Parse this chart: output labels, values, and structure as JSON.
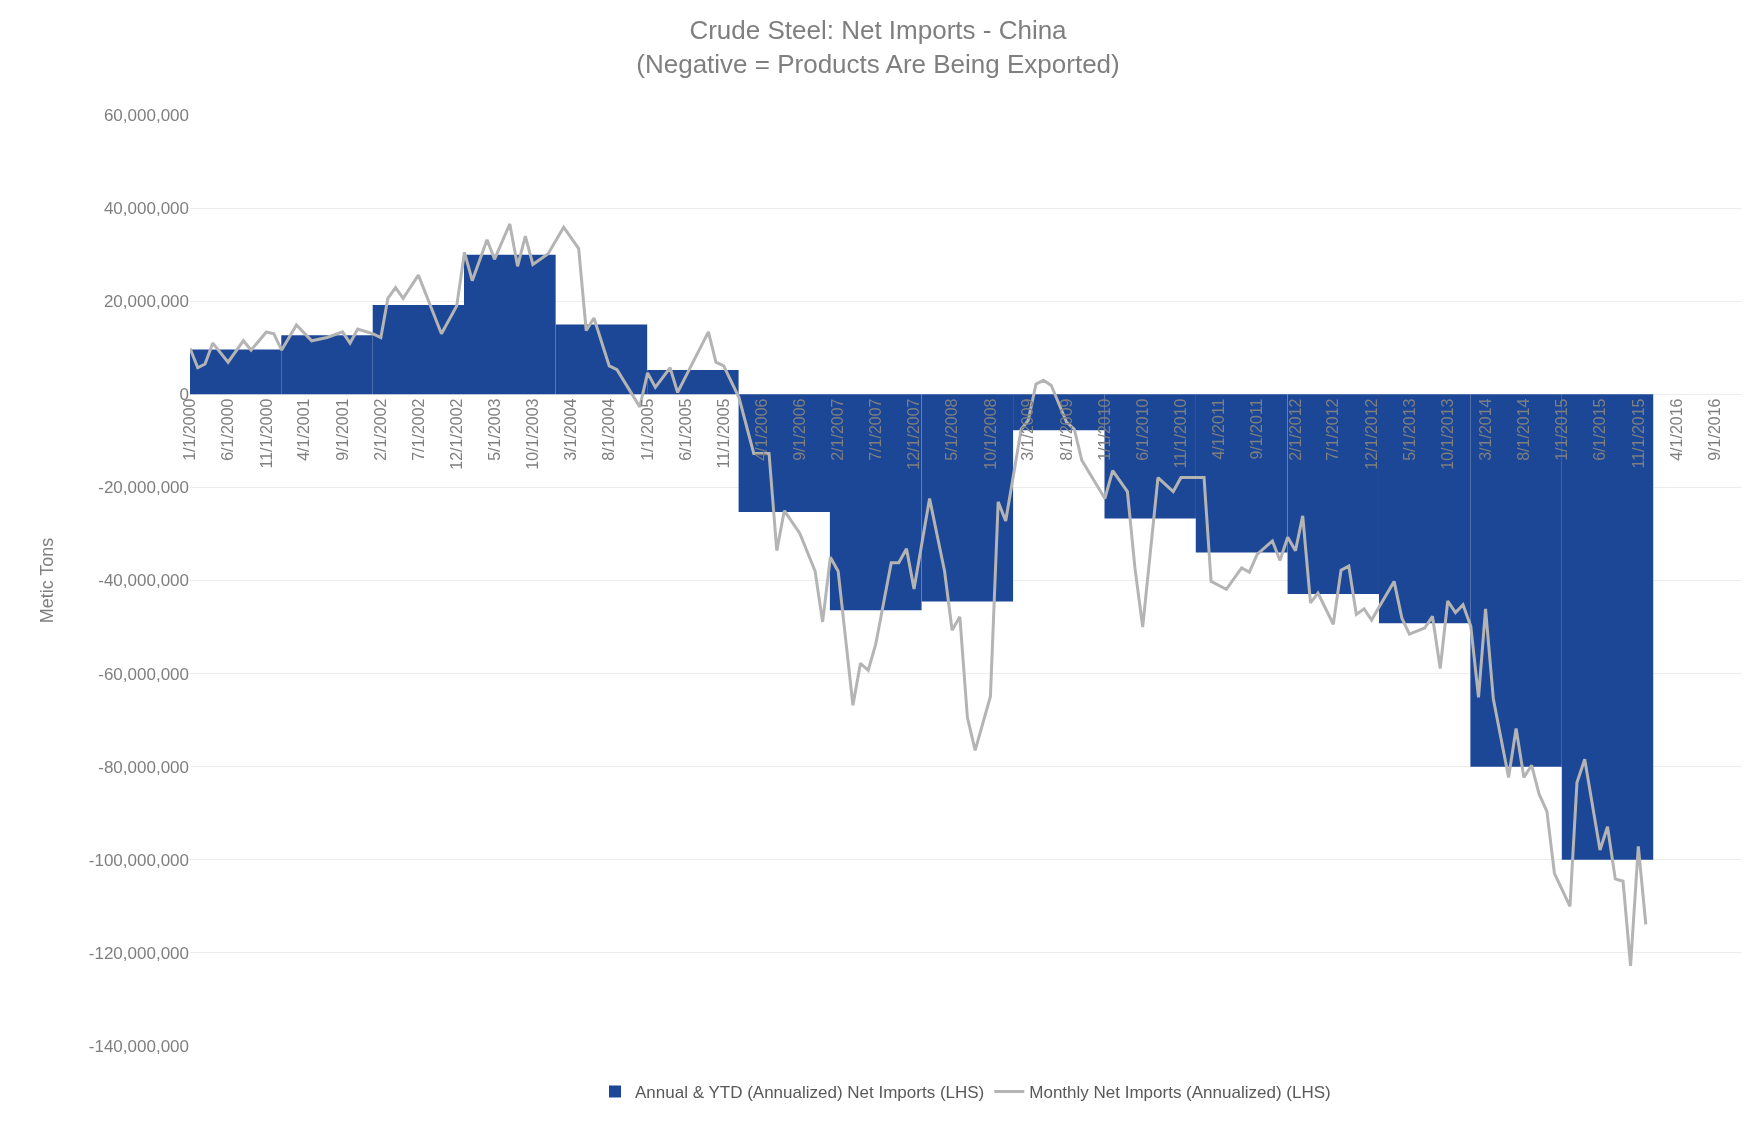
{
  "chart_data": {
    "type": "line",
    "title": "Crude Steel: Net Imports - China",
    "subtitle": "(Negative = Products Are Being Exported)",
    "ylabel": "Metic Tons",
    "xlim": [
      "2000-01-01",
      "2016-12-15"
    ],
    "xticks": [
      {
        "value": "2000-01-01",
        "label": "1/1/2000"
      },
      {
        "value": "2000-06-01",
        "label": "6/1/2000"
      },
      {
        "value": "2000-11-01",
        "label": "11/1/2000"
      },
      {
        "value": "2001-04-01",
        "label": "4/1/2001"
      },
      {
        "value": "2001-09-01",
        "label": "9/1/2001"
      },
      {
        "value": "2002-02-01",
        "label": "2/1/2002"
      },
      {
        "value": "2002-07-01",
        "label": "7/1/2002"
      },
      {
        "value": "2002-12-01",
        "label": "12/1/2002"
      },
      {
        "value": "2003-05-01",
        "label": "5/1/2003"
      },
      {
        "value": "2003-10-01",
        "label": "10/1/2003"
      },
      {
        "value": "2004-03-01",
        "label": "3/1/2004"
      },
      {
        "value": "2004-08-01",
        "label": "8/1/2004"
      },
      {
        "value": "2005-01-01",
        "label": "1/1/2005"
      },
      {
        "value": "2005-06-01",
        "label": "6/1/2005"
      },
      {
        "value": "2005-11-01",
        "label": "11/1/2005"
      },
      {
        "value": "2006-04-01",
        "label": "4/1/2006"
      },
      {
        "value": "2006-09-01",
        "label": "9/1/2006"
      },
      {
        "value": "2007-02-01",
        "label": "2/1/2007"
      },
      {
        "value": "2007-07-01",
        "label": "7/1/2007"
      },
      {
        "value": "2007-12-01",
        "label": "12/1/2007"
      },
      {
        "value": "2008-05-01",
        "label": "5/1/2008"
      },
      {
        "value": "2008-10-01",
        "label": "10/1/2008"
      },
      {
        "value": "2009-03-01",
        "label": "3/1/2009"
      },
      {
        "value": "2009-08-01",
        "label": "8/1/2009"
      },
      {
        "value": "2010-01-01",
        "label": "1/1/2010"
      },
      {
        "value": "2010-06-01",
        "label": "6/1/2010"
      },
      {
        "value": "2010-11-01",
        "label": "11/1/2010"
      },
      {
        "value": "2011-04-01",
        "label": "4/1/2011"
      },
      {
        "value": "2011-09-01",
        "label": "9/1/2011"
      },
      {
        "value": "2012-02-01",
        "label": "2/1/2012"
      },
      {
        "value": "2012-07-01",
        "label": "7/1/2012"
      },
      {
        "value": "2012-12-01",
        "label": "12/1/2012"
      },
      {
        "value": "2013-05-01",
        "label": "5/1/2013"
      },
      {
        "value": "2013-10-01",
        "label": "10/1/2013"
      },
      {
        "value": "2014-03-01",
        "label": "3/1/2014"
      },
      {
        "value": "2014-08-01",
        "label": "8/1/2014"
      },
      {
        "value": "2015-01-01",
        "label": "1/1/2015"
      },
      {
        "value": "2015-06-01",
        "label": "6/1/2015"
      },
      {
        "value": "2015-11-01",
        "label": "11/1/2015"
      },
      {
        "value": "2016-04-01",
        "label": "4/1/2016"
      },
      {
        "value": "2016-09-01",
        "label": "9/1/2016"
      }
    ],
    "ylim": [
      -140000000,
      60000000
    ],
    "yticks": [
      {
        "value": -140000000,
        "label": "-140,000,000"
      },
      {
        "value": -120000000,
        "label": "-120,000,000"
      },
      {
        "value": -100000000,
        "label": "-100,000,000"
      },
      {
        "value": -80000000,
        "label": "-80,000,000"
      },
      {
        "value": -60000000,
        "label": "-60,000,000"
      },
      {
        "value": -40000000,
        "label": "-40,000,000"
      },
      {
        "value": -20000000,
        "label": "-20,000,000"
      },
      {
        "value": 0,
        "label": "0"
      },
      {
        "value": 20000000,
        "label": "20,000,000"
      },
      {
        "value": 40000000,
        "label": "40,000,000"
      },
      {
        "value": 60000000,
        "label": "60,000,000"
      }
    ],
    "grid": "y",
    "legend": "bottom",
    "marker": "none",
    "line_style": "solid",
    "series": [
      {
        "name": "Annual & YTD (Annualized) Net Imports (LHS)",
        "type": "bar",
        "color": "#1c4796",
        "x": [
          "2000-07-01",
          "2001-07-01",
          "2002-07-01",
          "2003-07-01",
          "2004-07-01",
          "2005-07-01",
          "2006-07-01",
          "2007-07-01",
          "2008-07-01",
          "2009-07-01",
          "2010-07-01",
          "2011-07-01",
          "2012-07-01",
          "2013-07-01",
          "2014-07-01",
          "2015-07-01"
        ],
        "values": [
          9600000,
          12700000,
          19200000,
          30000000,
          15000000,
          5200000,
          -25300000,
          -46400000,
          -44500000,
          -7700000,
          -26700000,
          -34000000,
          -42900000,
          -49200000,
          -80000000,
          -100000000
        ]
      },
      {
        "name": "Monthly Net Imports (Annualized) (LHS)",
        "color": "#b4b4b4",
        "x": [
          "2000-01",
          "2000-02",
          "2000-03",
          "2000-04",
          "2000-06",
          "2000-08",
          "2000-09",
          "2000-11",
          "2000-12",
          "2001-01",
          "2001-03",
          "2001-05",
          "2001-07",
          "2001-09",
          "2001-10",
          "2001-11",
          "2002-01",
          "2002-02",
          "2002-03",
          "2002-04",
          "2002-05",
          "2002-07",
          "2002-10",
          "2002-12",
          "2003-01",
          "2003-02",
          "2003-04",
          "2003-05",
          "2003-07",
          "2003-08",
          "2003-09",
          "2003-10",
          "2003-12",
          "2004-02",
          "2004-04",
          "2004-05",
          "2004-06",
          "2004-08",
          "2004-09",
          "2004-12",
          "2005-01",
          "2005-02",
          "2005-04",
          "2005-05",
          "2005-09",
          "2005-10",
          "2005-11",
          "2006-01",
          "2006-03",
          "2006-05",
          "2006-06",
          "2006-07",
          "2006-09",
          "2006-11",
          "2006-12",
          "2007-01",
          "2007-02",
          "2007-04",
          "2007-05",
          "2007-06",
          "2007-07",
          "2007-09",
          "2007-10",
          "2007-11",
          "2007-12",
          "2008-02",
          "2008-04",
          "2008-05",
          "2008-06",
          "2008-07",
          "2008-08",
          "2008-10",
          "2008-11",
          "2008-12",
          "2009-02",
          "2009-03",
          "2009-04",
          "2009-05",
          "2009-06",
          "2009-08",
          "2009-09",
          "2009-10",
          "2010-01",
          "2010-02",
          "2010-04",
          "2010-05",
          "2010-06",
          "2010-08",
          "2010-10",
          "2010-11",
          "2011-02",
          "2011-03",
          "2011-05",
          "2011-07",
          "2011-08",
          "2011-09",
          "2011-11",
          "2011-12",
          "2012-01",
          "2012-02",
          "2012-03",
          "2012-04",
          "2012-05",
          "2012-07",
          "2012-08",
          "2012-09",
          "2012-10",
          "2012-11",
          "2012-12",
          "2013-01",
          "2013-03",
          "2013-04",
          "2013-05",
          "2013-07",
          "2013-08",
          "2013-09",
          "2013-10",
          "2013-11",
          "2013-12",
          "2014-01",
          "2014-02",
          "2014-03",
          "2014-04",
          "2014-06",
          "2014-07",
          "2014-08",
          "2014-09",
          "2014-10",
          "2014-11",
          "2014-12",
          "2015-02",
          "2015-03",
          "2015-04",
          "2015-06",
          "2015-07",
          "2015-08",
          "2015-09",
          "2015-10",
          "2015-11",
          "2015-12"
        ],
        "values": [
          9900000,
          5700000,
          6500000,
          11000000,
          6900000,
          11500000,
          9500000,
          13400000,
          13000000,
          9500000,
          14900000,
          11500000,
          12200000,
          13400000,
          11000000,
          14000000,
          13000000,
          12200000,
          20600000,
          22900000,
          20600000,
          25600000,
          13000000,
          19000000,
          30500000,
          24400000,
          33200000,
          29000000,
          36600000,
          27500000,
          34000000,
          27900000,
          30200000,
          35900000,
          31300000,
          13700000,
          16400000,
          6100000,
          5300000,
          -2700000,
          4600000,
          1500000,
          5700000,
          400000,
          13400000,
          6900000,
          6100000,
          -700000,
          -12700000,
          -12700000,
          -33600000,
          -25000000,
          -29900000,
          -38000000,
          -48900000,
          -35000000,
          -38000000,
          -66800000,
          -57800000,
          -59300000,
          -53700000,
          -36200000,
          -36200000,
          -33200000,
          -41800000,
          -22400000,
          -38000000,
          -50700000,
          -47800000,
          -69400000,
          -76500000,
          -64900000,
          -23100000,
          -27200000,
          -7500000,
          -5600000,
          2200000,
          3000000,
          1900000,
          -6000000,
          -7500000,
          -14200000,
          -22400000,
          -16400000,
          -20900000,
          -37300000,
          -50000000,
          -17900000,
          -20900000,
          -17900000,
          -17900000,
          -40200000,
          -41900000,
          -37300000,
          -38200000,
          -34400000,
          -31500000,
          -35700000,
          -30700000,
          -33600000,
          -26100000,
          -44800000,
          -42700000,
          -49400000,
          -37800000,
          -36900000,
          -47300000,
          -46100000,
          -48500000,
          -45600000,
          -40200000,
          -48100000,
          -51500000,
          -50200000,
          -47700000,
          -58900000,
          -44400000,
          -46900000,
          -45200000,
          -49800000,
          -65100000,
          -46100000,
          -65400000,
          -82300000,
          -71800000,
          -82300000,
          -79700000,
          -85900000,
          -89600000,
          -102900000,
          -110000000,
          -83400000,
          -78400000,
          -97900000,
          -92900000,
          -104100000,
          -104600000,
          -122800000,
          -97100000,
          -113900000
        ]
      }
    ]
  }
}
